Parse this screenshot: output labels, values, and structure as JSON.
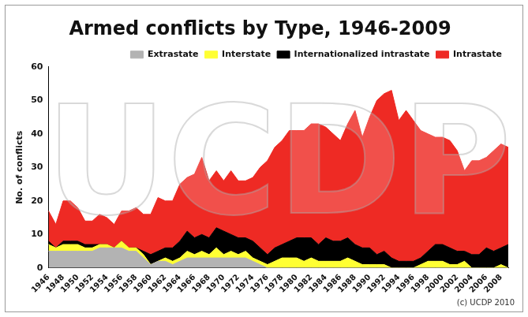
{
  "chart_data": {
    "type": "stacked_area",
    "title": "Armed conflicts by Type, 1946-2009",
    "y_label": "No. of conflicts",
    "annotations": [
      "(c) UCDP 2010"
    ],
    "watermark": "UCDP",
    "categories": [
      "1946",
      null,
      "1948",
      null,
      "1950",
      null,
      "1952",
      null,
      "1954",
      null,
      "1956",
      null,
      "1958",
      null,
      "1960",
      null,
      "1962",
      null,
      "1964",
      null,
      "1966",
      null,
      "1968",
      null,
      "1970",
      null,
      "1972",
      null,
      "1974",
      null,
      "1976",
      null,
      "1978",
      null,
      "1980",
      null,
      "1982",
      null,
      "1984",
      null,
      "1986",
      null,
      "1988",
      null,
      "1990",
      null,
      "1992",
      null,
      "1994",
      null,
      "1996",
      null,
      "1998",
      null,
      "2000",
      null,
      "2002",
      null,
      "2004",
      null,
      "2006",
      null,
      "2008",
      null
    ],
    "series": [
      {
        "name": "Extrastate",
        "color": "#b3b3b3",
        "values": [
          5,
          5,
          5,
          5,
          5,
          5,
          5,
          6,
          6,
          6,
          6,
          5,
          5,
          3,
          1,
          2,
          2,
          1,
          2,
          3,
          3,
          3,
          3,
          3,
          3,
          3,
          3,
          3,
          2,
          1,
          0,
          0,
          0,
          0,
          0,
          0,
          0,
          0,
          0,
          0,
          0,
          0,
          0,
          0,
          0,
          0,
          0,
          0,
          0,
          0,
          0,
          0,
          0,
          0,
          0,
          0,
          0,
          0,
          0,
          0,
          0,
          0,
          0,
          0
        ]
      },
      {
        "name": "Interstate",
        "color": "#ffff33",
        "values": [
          2,
          1,
          2,
          2,
          2,
          1,
          1,
          1,
          1,
          0,
          2,
          1,
          1,
          1,
          0,
          0,
          1,
          1,
          1,
          2,
          1,
          2,
          1,
          3,
          1,
          2,
          1,
          2,
          1,
          1,
          1,
          2,
          3,
          3,
          3,
          2,
          3,
          2,
          2,
          2,
          2,
          3,
          2,
          1,
          1,
          1,
          1,
          0,
          0,
          0,
          0,
          1,
          2,
          2,
          2,
          1,
          1,
          2,
          0,
          0,
          0,
          0,
          1,
          0
        ]
      },
      {
        "name": "Internationalized intrastate",
        "color": "#000000",
        "values": [
          1,
          0,
          1,
          1,
          1,
          1,
          1,
          0,
          0,
          0,
          0,
          0,
          0,
          1,
          3,
          3,
          3,
          4,
          5,
          6,
          5,
          5,
          5,
          6,
          7,
          5,
          5,
          4,
          5,
          4,
          3,
          4,
          4,
          5,
          6,
          7,
          6,
          5,
          7,
          6,
          6,
          6,
          5,
          5,
          5,
          3,
          4,
          3,
          2,
          2,
          2,
          2,
          3,
          5,
          5,
          5,
          4,
          3,
          4,
          4,
          6,
          5,
          5,
          7
        ]
      },
      {
        "name": "Intrastate",
        "color": "#ee2a24",
        "values": [
          9,
          7,
          12,
          12,
          10,
          7,
          7,
          9,
          8,
          7,
          9,
          11,
          12,
          11,
          12,
          16,
          14,
          14,
          17,
          16,
          19,
          23,
          17,
          17,
          15,
          19,
          17,
          17,
          19,
          24,
          28,
          30,
          31,
          33,
          32,
          32,
          34,
          36,
          33,
          32,
          30,
          34,
          40,
          33,
          39,
          46,
          47,
          50,
          42,
          45,
          42,
          38,
          35,
          32,
          32,
          32,
          30,
          24,
          28,
          28,
          27,
          30,
          31,
          29
        ]
      }
    ],
    "ylim": [
      0,
      60
    ],
    "yticks": [
      0,
      10,
      20,
      30,
      40,
      50,
      60
    ],
    "stacked": true,
    "grid": false,
    "legend": "top"
  }
}
